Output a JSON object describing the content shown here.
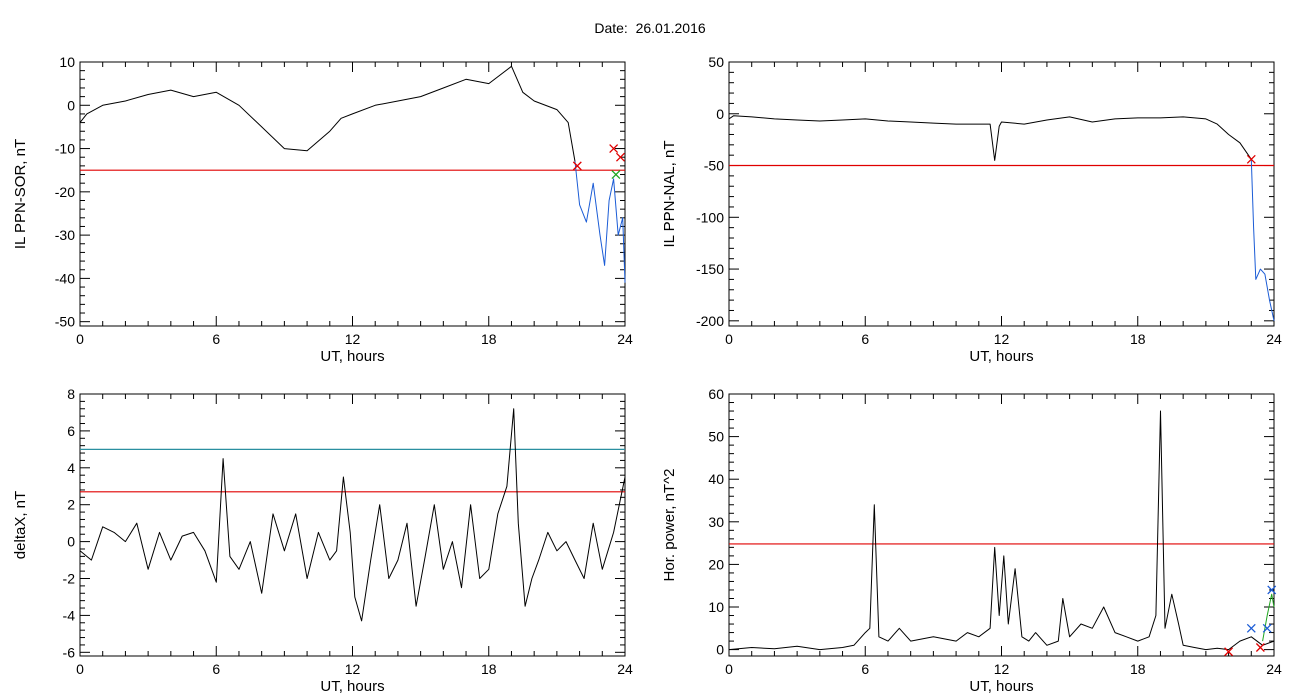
{
  "header": {
    "date_label": "Date:",
    "date_value": "26.01.2016"
  },
  "colors": {
    "axis": "#000000",
    "trace": "#000000",
    "threshold": "#e00000",
    "threshold2": "#2a8fa0",
    "alert": "#1b5cd6",
    "green": "#1fa51f"
  },
  "chart_data": [
    {
      "type": "line",
      "ylabel": "IL PPN-SOR, nT",
      "xlabel": "UT, hours",
      "xlim": [
        0,
        24
      ],
      "ylim": [
        -51,
        10
      ],
      "xticks": [
        0,
        6,
        12,
        18,
        24
      ],
      "yticks": [
        10,
        0,
        -10,
        -20,
        -30,
        -40,
        -50
      ],
      "thresholds": [
        {
          "value": -15,
          "color": "#e00000"
        }
      ],
      "series": [
        {
          "role": "trace",
          "color": "#000000",
          "x": [
            0,
            0.3,
            1,
            2,
            3,
            4,
            5,
            6,
            7,
            8,
            9,
            10,
            11,
            11.5,
            12,
            13,
            14,
            15,
            16,
            17,
            18,
            19,
            19.5,
            20,
            21,
            21.5,
            21.8
          ],
          "y": [
            -4,
            -2,
            0,
            1,
            2.5,
            3.5,
            2,
            3,
            0,
            -5,
            -10,
            -10.5,
            -6,
            -3,
            -2,
            0,
            1,
            2,
            4,
            6,
            5,
            9,
            3,
            1,
            -1,
            -4,
            -13
          ]
        },
        {
          "role": "alert",
          "color": "#1b5cd6",
          "x": [
            21.8,
            22,
            22.3,
            22.6,
            22.9,
            23.1,
            23.3,
            23.5,
            23.7,
            23.9,
            24
          ],
          "y": [
            -13,
            -23,
            -27,
            -18,
            -30,
            -37,
            -22,
            -17,
            -30,
            -26,
            -41
          ]
        }
      ],
      "markers": [
        {
          "x": 21.9,
          "y": -14,
          "color": "#e00000"
        },
        {
          "x": 23.5,
          "y": -10,
          "color": "#e00000"
        },
        {
          "x": 23.8,
          "y": -12,
          "color": "#e00000"
        },
        {
          "x": 23.6,
          "y": -16,
          "color": "#1fa51f"
        }
      ]
    },
    {
      "type": "line",
      "ylabel": "IL PPN-NAL, nT",
      "xlabel": "UT, hours",
      "xlim": [
        0,
        24
      ],
      "ylim": [
        -205,
        50
      ],
      "xticks": [
        0,
        6,
        12,
        18,
        24
      ],
      "yticks": [
        50,
        0,
        -50,
        -100,
        -150,
        -200
      ],
      "thresholds": [
        {
          "value": -50,
          "color": "#e00000"
        }
      ],
      "series": [
        {
          "role": "trace",
          "color": "#000000",
          "x": [
            0,
            0.2,
            1,
            2,
            3,
            4,
            5,
            6,
            7,
            8,
            9,
            10,
            11,
            11.5,
            11.7,
            11.9,
            12,
            13,
            14,
            15,
            16,
            17,
            18,
            19,
            20,
            21,
            21.5,
            22,
            22.5,
            23
          ],
          "y": [
            -5,
            -2,
            -3,
            -5,
            -6,
            -7,
            -6,
            -5,
            -7,
            -8,
            -9,
            -10,
            -10,
            -10,
            -45,
            -12,
            -8,
            -10,
            -6,
            -3,
            -8,
            -5,
            -4,
            -4,
            -3,
            -5,
            -10,
            -20,
            -28,
            -44
          ]
        },
        {
          "role": "alert",
          "color": "#1b5cd6",
          "x": [
            23,
            23.1,
            23.2,
            23.4,
            23.6,
            23.8,
            24
          ],
          "y": [
            -44,
            -110,
            -160,
            -150,
            -155,
            -180,
            -200
          ]
        }
      ],
      "markers": [
        {
          "x": 23,
          "y": -44,
          "color": "#e00000"
        }
      ]
    },
    {
      "type": "line",
      "ylabel": "deltaX, nT",
      "xlabel": "UT, hours",
      "xlim": [
        0,
        24
      ],
      "ylim": [
        -6.2,
        8
      ],
      "xticks": [
        0,
        6,
        12,
        18,
        24
      ],
      "yticks": [
        8,
        6,
        4,
        2,
        0,
        -2,
        -4,
        -6
      ],
      "thresholds": [
        {
          "value": 5,
          "color": "#2a8fa0"
        },
        {
          "value": 2.7,
          "color": "#e00000"
        }
      ],
      "series": [
        {
          "role": "trace",
          "color": "#000000",
          "x": [
            0,
            0.5,
            1,
            1.5,
            2,
            2.5,
            3,
            3.5,
            4,
            4.5,
            5,
            5.5,
            6,
            6.3,
            6.6,
            7,
            7.5,
            8,
            8.5,
            9,
            9.5,
            10,
            10.5,
            11,
            11.3,
            11.6,
            11.9,
            12.1,
            12.4,
            12.8,
            13.2,
            13.6,
            14,
            14.4,
            14.8,
            15.2,
            15.6,
            16,
            16.4,
            16.8,
            17.2,
            17.6,
            18,
            18.4,
            18.8,
            19.1,
            19.3,
            19.6,
            19.9,
            20.2,
            20.6,
            21,
            21.4,
            21.8,
            22.2,
            22.6,
            23,
            23.5,
            24
          ],
          "y": [
            -0.5,
            -1,
            0.8,
            0.5,
            0,
            1,
            -1.5,
            0.5,
            -1,
            0.3,
            0.5,
            -0.5,
            -2.2,
            4.5,
            -0.8,
            -1.5,
            0,
            -2.8,
            1.5,
            -0.5,
            1.5,
            -2,
            0.5,
            -1,
            -0.5,
            3.5,
            0.5,
            -3,
            -4.3,
            -1,
            2,
            -2,
            -1,
            1,
            -3.5,
            -0.8,
            2,
            -1.5,
            0,
            -2.5,
            2,
            -2,
            -1.5,
            1.5,
            3,
            7.2,
            1,
            -3.5,
            -2,
            -1,
            0.5,
            -0.5,
            0,
            -1,
            -2,
            1,
            -1.5,
            0.5,
            3.5
          ]
        }
      ],
      "markers": []
    },
    {
      "type": "line",
      "ylabel": "Hor. power, nT^2",
      "xlabel": "UT, hours",
      "xlim": [
        0,
        24
      ],
      "ylim": [
        -1.5,
        60
      ],
      "xticks": [
        0,
        6,
        12,
        18,
        24
      ],
      "yticks": [
        60,
        50,
        40,
        30,
        20,
        10,
        0
      ],
      "thresholds": [
        {
          "value": 24.8,
          "color": "#e00000"
        }
      ],
      "series": [
        {
          "role": "trace",
          "color": "#000000",
          "x": [
            0,
            1,
            2,
            3,
            4,
            5,
            5.5,
            6,
            6.2,
            6.4,
            6.6,
            7,
            7.5,
            8,
            9,
            10,
            10.5,
            11,
            11.5,
            11.7,
            11.9,
            12.1,
            12.3,
            12.6,
            12.9,
            13.2,
            13.5,
            14,
            14.5,
            14.7,
            15,
            15.5,
            16,
            16.5,
            17,
            17.5,
            18,
            18.5,
            18.8,
            19,
            19.2,
            19.5,
            19.8,
            20,
            20.5,
            21,
            21.5,
            22,
            22.5,
            23,
            23.5,
            24
          ],
          "y": [
            0,
            0.5,
            0.2,
            0.8,
            0,
            0.5,
            1,
            4,
            5,
            34,
            3,
            2,
            5,
            2,
            3,
            2,
            4,
            3,
            5,
            24,
            8,
            22,
            6,
            19,
            3,
            2,
            4,
            1,
            2,
            12,
            3,
            6,
            5,
            10,
            4,
            3,
            2,
            3,
            8,
            56,
            5,
            13,
            6,
            1,
            0.5,
            0,
            0.3,
            0,
            2,
            3,
            1,
            2
          ]
        },
        {
          "role": "tail",
          "color": "#1fa51f",
          "x": [
            23.5,
            23.7,
            23.9,
            24
          ],
          "y": [
            2,
            8,
            13,
            10
          ]
        }
      ],
      "markers": [
        {
          "x": 23,
          "y": 5,
          "color": "#1b5cd6"
        },
        {
          "x": 23.7,
          "y": 5,
          "color": "#1b5cd6"
        },
        {
          "x": 23.9,
          "y": 14,
          "color": "#1b5cd6"
        },
        {
          "x": 22,
          "y": -0.5,
          "color": "#e00000"
        },
        {
          "x": 23.4,
          "y": 0.5,
          "color": "#e00000"
        }
      ]
    }
  ]
}
